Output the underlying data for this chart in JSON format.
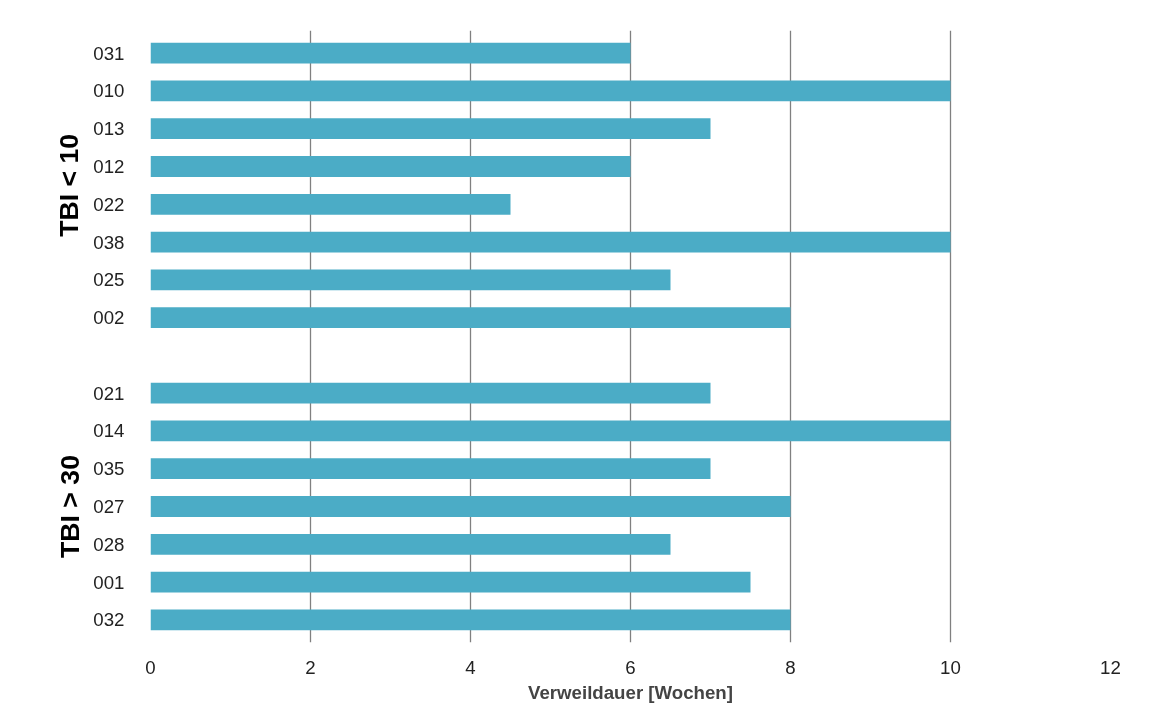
{
  "chart_data": {
    "type": "bar",
    "orientation": "horizontal",
    "xlabel": "Verweildauer [Wochen]",
    "categories": [
      "031",
      "010",
      "013",
      "012",
      "022",
      "038",
      "025",
      "002",
      null,
      "021",
      "014",
      "035",
      "027",
      "028",
      "001",
      "032"
    ],
    "values": [
      6,
      10,
      7,
      6,
      4.5,
      10,
      6.5,
      8,
      null,
      7,
      10,
      7,
      8,
      6.5,
      7.5,
      8
    ],
    "color": "#4bacc6",
    "xlim": [
      0,
      12
    ],
    "xticks": [
      0,
      2,
      4,
      6,
      8,
      10,
      12
    ],
    "grid": "x",
    "annotations": [
      "TBI < 10",
      "TBI > 30"
    ]
  }
}
